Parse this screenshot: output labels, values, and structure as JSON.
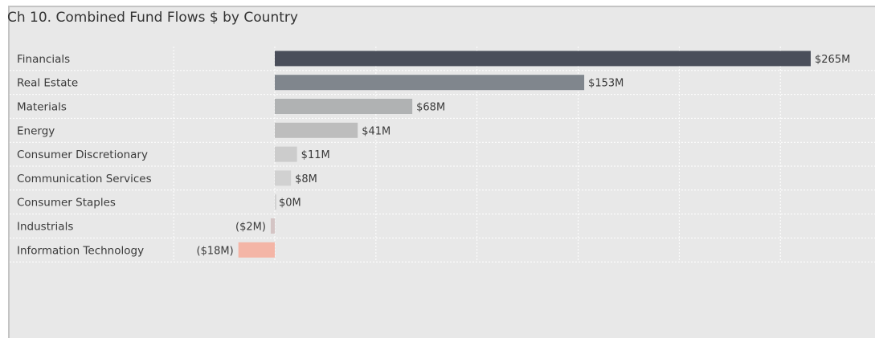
{
  "title": "Ch 10.  Combined Fund Flows $ by Country",
  "chart_data": {
    "type": "bar",
    "orientation": "horizontal",
    "title": "Ch 10.  Combined Fund Flows $ by Country",
    "categories": [
      "Financials",
      "Real Estate",
      "Materials",
      "Energy",
      "Consumer Discretionary",
      "Communication Services",
      "Consumer Staples",
      "Industrials",
      "Information Technology"
    ],
    "values": [
      265,
      153,
      68,
      41,
      11,
      8,
      0,
      -2,
      -18
    ],
    "value_labels": [
      "$265M",
      "$153M",
      "$68M",
      "$41M",
      "$11M",
      "$8M",
      "$0M",
      "($2M)",
      "($18M)"
    ],
    "unit": "$M",
    "xlim": [
      -50,
      300
    ],
    "grid": true,
    "legend": "none",
    "colors": [
      "#4a4e5a",
      "#80868d",
      "#b0b2b3",
      "#bdbdbd",
      "#cccccc",
      "#d1d1d1",
      "#d1d1d1",
      "#d4c4c4",
      "#f4b5a6"
    ]
  }
}
